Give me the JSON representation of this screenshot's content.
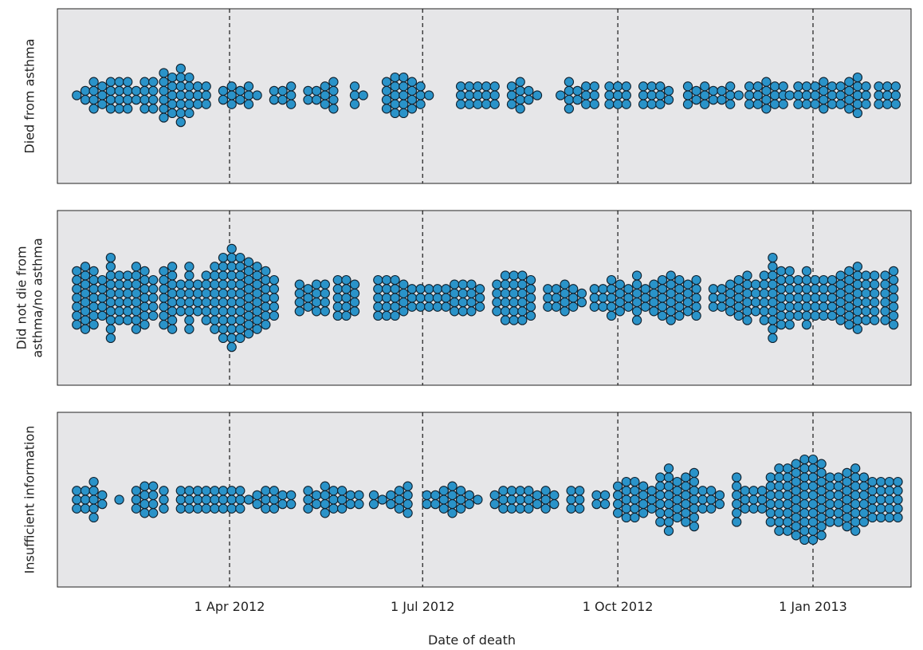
{
  "chart_data": {
    "type": "scatter",
    "subtype": "beeswarm",
    "xlabel": "Date of death",
    "x_range": [
      "2012-01-10",
      "2013-02-14"
    ],
    "x_ticks": [
      {
        "date": "2012-04-01",
        "label": "1 Apr 2012"
      },
      {
        "date": "2012-07-01",
        "label": "1 Jul 2012"
      },
      {
        "date": "2012-10-01",
        "label": "1 Oct 2012"
      },
      {
        "date": "2013-01-01",
        "label": "1 Jan 2013"
      }
    ],
    "reference_lines": [
      "2012-04-01",
      "2012-07-01",
      "2012-10-01",
      "2013-01-01"
    ],
    "point_color": "#2a93c9",
    "point_edge_color": "#10212e",
    "panel_color": "#e6e6e8",
    "y_axis": "none",
    "grid": false,
    "panels": [
      {
        "title": "Died from asthma",
        "title_lines": [
          "Died from asthma"
        ],
        "counts_by_date": [
          [
            "2012-01-20",
            1
          ],
          [
            "2012-01-24",
            2
          ],
          [
            "2012-01-28",
            4
          ],
          [
            "2012-02-01",
            3
          ],
          [
            "2012-02-05",
            4
          ],
          [
            "2012-02-09",
            4
          ],
          [
            "2012-02-13",
            4
          ],
          [
            "2012-02-17",
            2
          ],
          [
            "2012-02-21",
            4
          ],
          [
            "2012-02-25",
            4
          ],
          [
            "2012-03-01",
            6
          ],
          [
            "2012-03-05",
            5
          ],
          [
            "2012-03-09",
            7
          ],
          [
            "2012-03-13",
            5
          ],
          [
            "2012-03-17",
            3
          ],
          [
            "2012-03-21",
            3
          ],
          [
            "2012-03-29",
            2
          ],
          [
            "2012-04-02",
            3
          ],
          [
            "2012-04-06",
            2
          ],
          [
            "2012-04-10",
            3
          ],
          [
            "2012-04-14",
            1
          ],
          [
            "2012-04-22",
            2
          ],
          [
            "2012-04-26",
            2
          ],
          [
            "2012-04-30",
            3
          ],
          [
            "2012-05-08",
            2
          ],
          [
            "2012-05-12",
            2
          ],
          [
            "2012-05-16",
            3
          ],
          [
            "2012-05-20",
            4
          ],
          [
            "2012-05-30",
            3
          ],
          [
            "2012-06-03",
            1
          ],
          [
            "2012-06-14",
            4
          ],
          [
            "2012-06-18",
            5
          ],
          [
            "2012-06-22",
            5
          ],
          [
            "2012-06-26",
            4
          ],
          [
            "2012-06-30",
            3
          ],
          [
            "2012-07-04",
            1
          ],
          [
            "2012-07-19",
            3
          ],
          [
            "2012-07-23",
            3
          ],
          [
            "2012-07-27",
            3
          ],
          [
            "2012-07-31",
            3
          ],
          [
            "2012-08-04",
            3
          ],
          [
            "2012-08-12",
            3
          ],
          [
            "2012-08-16",
            4
          ],
          [
            "2012-08-20",
            2
          ],
          [
            "2012-08-24",
            1
          ],
          [
            "2012-09-04",
            1
          ],
          [
            "2012-09-08",
            4
          ],
          [
            "2012-09-12",
            2
          ],
          [
            "2012-09-16",
            3
          ],
          [
            "2012-09-20",
            3
          ],
          [
            "2012-09-27",
            3
          ],
          [
            "2012-10-01",
            3
          ],
          [
            "2012-10-05",
            3
          ],
          [
            "2012-10-13",
            3
          ],
          [
            "2012-10-17",
            3
          ],
          [
            "2012-10-21",
            3
          ],
          [
            "2012-10-25",
            2
          ],
          [
            "2012-11-03",
            3
          ],
          [
            "2012-11-07",
            2
          ],
          [
            "2012-11-11",
            3
          ],
          [
            "2012-11-15",
            2
          ],
          [
            "2012-11-19",
            2
          ],
          [
            "2012-11-23",
            3
          ],
          [
            "2012-11-27",
            1
          ],
          [
            "2012-12-02",
            3
          ],
          [
            "2012-12-06",
            3
          ],
          [
            "2012-12-10",
            4
          ],
          [
            "2012-12-14",
            3
          ],
          [
            "2012-12-18",
            3
          ],
          [
            "2012-12-21",
            1
          ],
          [
            "2012-12-25",
            3
          ],
          [
            "2012-12-29",
            3
          ],
          [
            "2013-01-02",
            3
          ],
          [
            "2013-01-06",
            4
          ],
          [
            "2013-01-10",
            3
          ],
          [
            "2013-01-14",
            3
          ],
          [
            "2013-01-18",
            4
          ],
          [
            "2013-01-22",
            5
          ],
          [
            "2013-01-26",
            3
          ],
          [
            "2013-02-01",
            3
          ],
          [
            "2013-02-05",
            3
          ],
          [
            "2013-02-09",
            3
          ]
        ]
      },
      {
        "title": "Did not die from asthma/no asthma",
        "title_lines": [
          "Did not die from",
          "asthma/no asthma"
        ],
        "counts_by_date": [
          [
            "2012-01-20",
            7
          ],
          [
            "2012-01-24",
            8
          ],
          [
            "2012-01-28",
            7
          ],
          [
            "2012-02-01",
            5
          ],
          [
            "2012-02-05",
            10
          ],
          [
            "2012-02-09",
            6
          ],
          [
            "2012-02-13",
            6
          ],
          [
            "2012-02-17",
            8
          ],
          [
            "2012-02-21",
            7
          ],
          [
            "2012-02-25",
            5
          ],
          [
            "2012-03-01",
            7
          ],
          [
            "2012-03-05",
            8
          ],
          [
            "2012-03-09",
            4
          ],
          [
            "2012-03-13",
            8
          ],
          [
            "2012-03-17",
            4
          ],
          [
            "2012-03-21",
            6
          ],
          [
            "2012-03-25",
            8
          ],
          [
            "2012-03-29",
            10
          ],
          [
            "2012-04-02",
            12
          ],
          [
            "2012-04-06",
            10
          ],
          [
            "2012-04-10",
            9
          ],
          [
            "2012-04-14",
            8
          ],
          [
            "2012-04-18",
            7
          ],
          [
            "2012-04-22",
            5
          ],
          [
            "2012-05-04",
            4
          ],
          [
            "2012-05-08",
            3
          ],
          [
            "2012-05-12",
            4
          ],
          [
            "2012-05-16",
            4
          ],
          [
            "2012-05-22",
            5
          ],
          [
            "2012-05-26",
            5
          ],
          [
            "2012-05-30",
            4
          ],
          [
            "2012-06-10",
            5
          ],
          [
            "2012-06-14",
            5
          ],
          [
            "2012-06-18",
            5
          ],
          [
            "2012-06-22",
            4
          ],
          [
            "2012-06-26",
            3
          ],
          [
            "2012-06-30",
            3
          ],
          [
            "2012-07-04",
            3
          ],
          [
            "2012-07-08",
            3
          ],
          [
            "2012-07-12",
            3
          ],
          [
            "2012-07-16",
            4
          ],
          [
            "2012-07-20",
            4
          ],
          [
            "2012-07-24",
            4
          ],
          [
            "2012-07-28",
            3
          ],
          [
            "2012-08-05",
            4
          ],
          [
            "2012-08-09",
            6
          ],
          [
            "2012-08-13",
            6
          ],
          [
            "2012-08-17",
            6
          ],
          [
            "2012-08-21",
            5
          ],
          [
            "2012-08-29",
            3
          ],
          [
            "2012-09-02",
            3
          ],
          [
            "2012-09-06",
            4
          ],
          [
            "2012-09-10",
            3
          ],
          [
            "2012-09-14",
            2
          ],
          [
            "2012-09-20",
            3
          ],
          [
            "2012-09-24",
            3
          ],
          [
            "2012-09-28",
            5
          ],
          [
            "2012-10-02",
            4
          ],
          [
            "2012-10-06",
            3
          ],
          [
            "2012-10-10",
            6
          ],
          [
            "2012-10-14",
            3
          ],
          [
            "2012-10-18",
            4
          ],
          [
            "2012-10-22",
            5
          ],
          [
            "2012-10-26",
            6
          ],
          [
            "2012-10-30",
            5
          ],
          [
            "2012-11-03",
            4
          ],
          [
            "2012-11-07",
            5
          ],
          [
            "2012-11-15",
            3
          ],
          [
            "2012-11-19",
            3
          ],
          [
            "2012-11-23",
            4
          ],
          [
            "2012-11-27",
            5
          ],
          [
            "2012-12-01",
            6
          ],
          [
            "2012-12-05",
            4
          ],
          [
            "2012-12-09",
            6
          ],
          [
            "2012-12-13",
            10
          ],
          [
            "2012-12-17",
            7
          ],
          [
            "2012-12-21",
            7
          ],
          [
            "2012-12-25",
            5
          ],
          [
            "2012-12-29",
            7
          ],
          [
            "2013-01-02",
            5
          ],
          [
            "2013-01-06",
            5
          ],
          [
            "2013-01-10",
            5
          ],
          [
            "2013-01-14",
            6
          ],
          [
            "2013-01-18",
            7
          ],
          [
            "2013-01-22",
            8
          ],
          [
            "2013-01-26",
            6
          ],
          [
            "2013-01-30",
            6
          ],
          [
            "2013-02-04",
            6
          ],
          [
            "2013-02-08",
            7
          ]
        ]
      },
      {
        "title": "Insufficient information",
        "title_lines": [
          "Insufficient information"
        ],
        "counts_by_date": [
          [
            "2012-01-20",
            3
          ],
          [
            "2012-01-24",
            3
          ],
          [
            "2012-01-28",
            5
          ],
          [
            "2012-02-01",
            2
          ],
          [
            "2012-02-09",
            1
          ],
          [
            "2012-02-17",
            3
          ],
          [
            "2012-02-21",
            4
          ],
          [
            "2012-02-25",
            4
          ],
          [
            "2012-03-01",
            3
          ],
          [
            "2012-03-09",
            3
          ],
          [
            "2012-03-13",
            3
          ],
          [
            "2012-03-17",
            3
          ],
          [
            "2012-03-21",
            3
          ],
          [
            "2012-03-25",
            3
          ],
          [
            "2012-03-29",
            3
          ],
          [
            "2012-04-02",
            3
          ],
          [
            "2012-04-06",
            3
          ],
          [
            "2012-04-10",
            1
          ],
          [
            "2012-04-14",
            2
          ],
          [
            "2012-04-18",
            3
          ],
          [
            "2012-04-22",
            3
          ],
          [
            "2012-04-26",
            2
          ],
          [
            "2012-04-30",
            2
          ],
          [
            "2012-05-08",
            3
          ],
          [
            "2012-05-12",
            2
          ],
          [
            "2012-05-16",
            4
          ],
          [
            "2012-05-20",
            3
          ],
          [
            "2012-05-24",
            3
          ],
          [
            "2012-05-28",
            2
          ],
          [
            "2012-06-01",
            2
          ],
          [
            "2012-06-08",
            2
          ],
          [
            "2012-06-12",
            1
          ],
          [
            "2012-06-16",
            2
          ],
          [
            "2012-06-20",
            3
          ],
          [
            "2012-06-24",
            4
          ],
          [
            "2012-07-03",
            2
          ],
          [
            "2012-07-07",
            2
          ],
          [
            "2012-07-11",
            3
          ],
          [
            "2012-07-15",
            4
          ],
          [
            "2012-07-19",
            3
          ],
          [
            "2012-07-23",
            2
          ],
          [
            "2012-07-27",
            1
          ],
          [
            "2012-08-04",
            2
          ],
          [
            "2012-08-08",
            3
          ],
          [
            "2012-08-12",
            3
          ],
          [
            "2012-08-16",
            3
          ],
          [
            "2012-08-20",
            3
          ],
          [
            "2012-08-24",
            2
          ],
          [
            "2012-08-28",
            3
          ],
          [
            "2012-09-01",
            2
          ],
          [
            "2012-09-09",
            3
          ],
          [
            "2012-09-13",
            3
          ],
          [
            "2012-09-21",
            2
          ],
          [
            "2012-09-25",
            2
          ],
          [
            "2012-10-01",
            4
          ],
          [
            "2012-10-05",
            5
          ],
          [
            "2012-10-09",
            5
          ],
          [
            "2012-10-13",
            4
          ],
          [
            "2012-10-17",
            3
          ],
          [
            "2012-10-21",
            6
          ],
          [
            "2012-10-25",
            8
          ],
          [
            "2012-10-29",
            5
          ],
          [
            "2012-11-02",
            6
          ],
          [
            "2012-11-06",
            7
          ],
          [
            "2012-11-10",
            3
          ],
          [
            "2012-11-14",
            3
          ],
          [
            "2012-11-18",
            2
          ],
          [
            "2012-11-26",
            6
          ],
          [
            "2012-11-30",
            3
          ],
          [
            "2012-12-04",
            3
          ],
          [
            "2012-12-08",
            3
          ],
          [
            "2012-12-12",
            6
          ],
          [
            "2012-12-16",
            8
          ],
          [
            "2012-12-20",
            8
          ],
          [
            "2012-12-24",
            9
          ],
          [
            "2012-12-28",
            10
          ],
          [
            "2013-01-01",
            10
          ],
          [
            "2013-01-05",
            9
          ],
          [
            "2013-01-09",
            6
          ],
          [
            "2013-01-13",
            6
          ],
          [
            "2013-01-17",
            7
          ],
          [
            "2013-01-21",
            8
          ],
          [
            "2013-01-25",
            6
          ],
          [
            "2013-01-29",
            5
          ],
          [
            "2013-02-02",
            5
          ],
          [
            "2013-02-06",
            5
          ],
          [
            "2013-02-10",
            5
          ]
        ]
      }
    ]
  }
}
